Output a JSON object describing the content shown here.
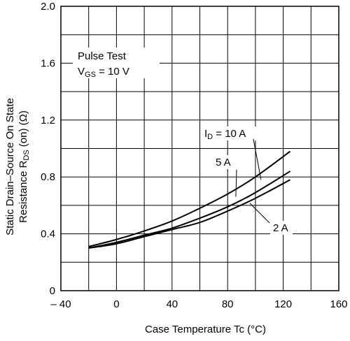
{
  "chart_data": {
    "type": "line",
    "xlabel": "Case Temperature Tc (°C)",
    "ylabel_line1": "Static Drain–Source On State",
    "ylabel_line2_main": "Resistance R",
    "ylabel_line2_sub": "DS",
    "ylabel_line2_rest": " (on) (Ω)",
    "xlim": [
      -40,
      160
    ],
    "ylim": [
      0,
      2.0
    ],
    "x_ticks": [
      -40,
      0,
      40,
      80,
      120,
      160
    ],
    "x_tick_labels": [
      "– 40",
      "0",
      "40",
      "80",
      "120",
      "160"
    ],
    "y_ticks": [
      0,
      0.4,
      0.8,
      1.2,
      1.6,
      2.0
    ],
    "y_tick_labels": [
      "0",
      "0.4",
      "0.8",
      "1.2",
      "1.6",
      "2.0"
    ],
    "grid": true,
    "x_grid_step": 20,
    "y_grid_step": 0.2,
    "conditions": {
      "line1": "Pulse Test",
      "line2_main": "V",
      "line2_sub": "GS",
      "line2_rest": " = 10 V"
    },
    "series": [
      {
        "name": "10 A",
        "label_main": "I",
        "label_sub": "D",
        "label_rest": " = 10 A",
        "x": [
          -20,
          0,
          20,
          40,
          60,
          80,
          100,
          125
        ],
        "y": [
          0.31,
          0.36,
          0.42,
          0.49,
          0.58,
          0.68,
          0.8,
          0.98
        ]
      },
      {
        "name": "5 A",
        "label_main": "5 A",
        "label_sub": "",
        "label_rest": "",
        "x": [
          -20,
          0,
          20,
          40,
          60,
          80,
          100,
          125
        ],
        "y": [
          0.3,
          0.34,
          0.39,
          0.44,
          0.51,
          0.59,
          0.69,
          0.84
        ]
      },
      {
        "name": "2 A",
        "label_main": "2 A",
        "label_sub": "",
        "label_rest": "",
        "x": [
          -20,
          0,
          20,
          40,
          60,
          80,
          100,
          125
        ],
        "y": [
          0.3,
          0.33,
          0.38,
          0.43,
          0.48,
          0.56,
          0.65,
          0.78
        ]
      }
    ]
  }
}
